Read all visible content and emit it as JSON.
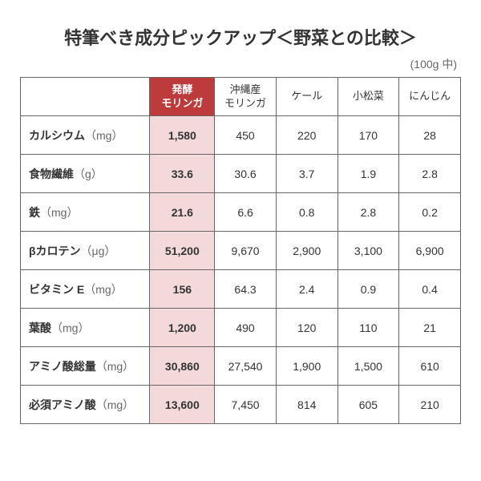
{
  "title": "特筆べき成分ピックアップ＜野菜との比較＞",
  "subtitle": "(100g 中)",
  "table": {
    "type": "table",
    "background_color": "#ffffff",
    "border_color": "#666666",
    "highlight_header_bg": "#bd3b3b",
    "highlight_header_fg": "#ffffff",
    "highlight_cell_bg": "#f3d9d9",
    "text_color": "#333333",
    "unit_color": "#666666",
    "title_fontsize": 22,
    "header_fontsize": 13,
    "cell_fontsize": 14,
    "columns": [
      {
        "label": "",
        "highlight": false
      },
      {
        "label": "発酵\nモリンガ",
        "highlight": true
      },
      {
        "label": "沖縄産\nモリンガ",
        "highlight": false
      },
      {
        "label": "ケール",
        "highlight": false
      },
      {
        "label": "小松菜",
        "highlight": false
      },
      {
        "label": "にんじん",
        "highlight": false
      }
    ],
    "rows": [
      {
        "label": "カルシウム",
        "unit": "（mg）",
        "values": [
          "1,580",
          "450",
          "220",
          "170",
          "28"
        ]
      },
      {
        "label": "食物繊維",
        "unit": "（g）",
        "values": [
          "33.6",
          "30.6",
          "3.7",
          "1.9",
          "2.8"
        ]
      },
      {
        "label": "鉄",
        "unit": "（mg）",
        "values": [
          "21.6",
          "6.6",
          "0.8",
          "2.8",
          "0.2"
        ]
      },
      {
        "label": "βカロテン",
        "unit": "（μg）",
        "values": [
          "51,200",
          "9,670",
          "2,900",
          "3,100",
          "6,900"
        ]
      },
      {
        "label": "ビタミン E",
        "unit": "（mg）",
        "values": [
          "156",
          "64.3",
          "2.4",
          "0.9",
          "0.4"
        ]
      },
      {
        "label": "葉酸",
        "unit": "（mg）",
        "values": [
          "1,200",
          "490",
          "120",
          "110",
          "21"
        ]
      },
      {
        "label": "アミノ酸総量",
        "unit": "（mg）",
        "values": [
          "30,860",
          "27,540",
          "1,900",
          "1,500",
          "610"
        ]
      },
      {
        "label": "必須アミノ酸",
        "unit": "（mg）",
        "values": [
          "13,600",
          "7,450",
          "814",
          "605",
          "210"
        ]
      }
    ]
  }
}
